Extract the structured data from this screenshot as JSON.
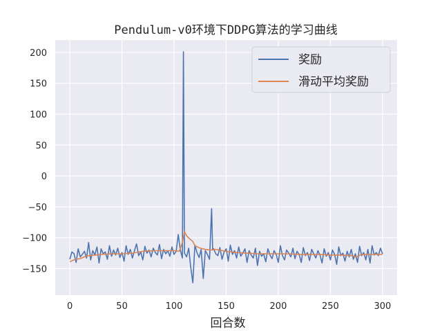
{
  "chart_data": {
    "type": "line",
    "title": "Pendulum-v0环境下DDPG算法的学习曲线",
    "xlabel": "回合数",
    "ylabel": "",
    "xlim": [
      -14,
      314
    ],
    "ylim": [
      -193,
      220
    ],
    "xticks": [
      0,
      50,
      100,
      150,
      200,
      250,
      300
    ],
    "yticks": [
      -150,
      -100,
      -50,
      0,
      50,
      100,
      150,
      200
    ],
    "grid": true,
    "legend_position": "top-right",
    "series": [
      {
        "name": "奖励",
        "color": "#4c72b0",
        "x": [
          0,
          2,
          4,
          6,
          8,
          10,
          12,
          14,
          16,
          18,
          20,
          22,
          24,
          26,
          28,
          30,
          32,
          34,
          36,
          38,
          40,
          42,
          44,
          46,
          48,
          50,
          52,
          54,
          56,
          58,
          60,
          62,
          64,
          66,
          68,
          70,
          72,
          74,
          76,
          78,
          80,
          82,
          84,
          86,
          88,
          90,
          92,
          94,
          96,
          98,
          100,
          102,
          104,
          106,
          108,
          109,
          110,
          112,
          114,
          116,
          118,
          120,
          122,
          124,
          126,
          128,
          130,
          132,
          134,
          136,
          137,
          138,
          140,
          142,
          144,
          146,
          148,
          150,
          152,
          154,
          156,
          158,
          160,
          162,
          164,
          166,
          168,
          170,
          172,
          174,
          176,
          178,
          180,
          182,
          184,
          186,
          188,
          190,
          192,
          194,
          196,
          198,
          200,
          202,
          204,
          206,
          208,
          210,
          212,
          214,
          216,
          218,
          220,
          222,
          224,
          226,
          228,
          230,
          232,
          234,
          236,
          238,
          240,
          242,
          244,
          246,
          248,
          250,
          252,
          254,
          256,
          258,
          260,
          262,
          264,
          266,
          268,
          270,
          272,
          274,
          276,
          278,
          280,
          282,
          284,
          286,
          288,
          290,
          292,
          294,
          296,
          298,
          300
        ],
        "y": [
          -135,
          -123,
          -126,
          -140,
          -118,
          -131,
          -127,
          -122,
          -133,
          -108,
          -136,
          -121,
          -128,
          -115,
          -141,
          -118,
          -126,
          -123,
          -135,
          -113,
          -130,
          -120,
          -128,
          -117,
          -132,
          -124,
          -138,
          -113,
          -127,
          -119,
          -133,
          -121,
          -110,
          -129,
          -123,
          -136,
          -114,
          -125,
          -120,
          -131,
          -117,
          -124,
          -128,
          -111,
          -134,
          -119,
          -126,
          -121,
          -130,
          -115,
          -127,
          -122,
          -95,
          -120,
          -133,
          201,
          -125,
          -131,
          -117,
          -148,
          -173,
          -112,
          -124,
          -132,
          -119,
          -166,
          -121,
          -127,
          -135,
          -53,
          -120,
          -118,
          -126,
          -129,
          -116,
          -135,
          -123,
          -118,
          -138,
          -112,
          -127,
          -121,
          -133,
          -115,
          -130,
          -125,
          -118,
          -140,
          -121,
          -128,
          -133,
          -117,
          -145,
          -122,
          -130,
          -126,
          -139,
          -118,
          -128,
          -134,
          -121,
          -127,
          -140,
          -113,
          -129,
          -136,
          -120,
          -125,
          -131,
          -117,
          -134,
          -122,
          -127,
          -140,
          -116,
          -129,
          -124,
          -137,
          -119,
          -126,
          -133,
          -121,
          -128,
          -141,
          -118,
          -130,
          -124,
          -136,
          -120,
          -127,
          -143,
          -115,
          -129,
          -125,
          -138,
          -122,
          -131,
          -119,
          -135,
          -126,
          -140,
          -114,
          -129,
          -124,
          -136,
          -119,
          -141,
          -113,
          -128,
          -124,
          -129,
          -117,
          -126
        ]
      },
      {
        "name": "滑动平均奖励",
        "color": "#dd8452",
        "x": [
          0,
          5,
          10,
          15,
          20,
          30,
          40,
          50,
          60,
          70,
          80,
          90,
          100,
          105,
          108,
          110,
          112,
          115,
          118,
          120,
          125,
          130,
          135,
          140,
          150,
          160,
          170,
          180,
          190,
          200,
          210,
          220,
          230,
          240,
          250,
          260,
          270,
          275,
          280,
          290,
          300
        ],
        "y": [
          -139,
          -135,
          -134,
          -130,
          -129,
          -127,
          -126,
          -126,
          -125,
          -122,
          -121,
          -121,
          -121,
          -122,
          -108,
          -90,
          -97,
          -102,
          -106,
          -113,
          -117,
          -119,
          -120,
          -119,
          -122,
          -124,
          -125,
          -126,
          -126,
          -126,
          -126,
          -127,
          -127,
          -127,
          -128,
          -128,
          -129,
          -131,
          -127,
          -127,
          -127
        ]
      }
    ]
  }
}
